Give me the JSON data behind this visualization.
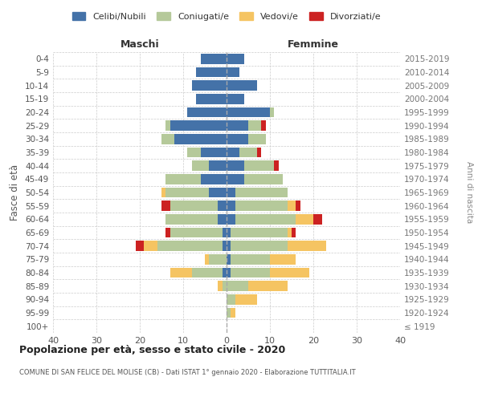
{
  "age_groups": [
    "100+",
    "95-99",
    "90-94",
    "85-89",
    "80-84",
    "75-79",
    "70-74",
    "65-69",
    "60-64",
    "55-59",
    "50-54",
    "45-49",
    "40-44",
    "35-39",
    "30-34",
    "25-29",
    "20-24",
    "15-19",
    "10-14",
    "5-9",
    "0-4"
  ],
  "birth_years": [
    "≤ 1919",
    "1920-1924",
    "1925-1929",
    "1930-1934",
    "1935-1939",
    "1940-1944",
    "1945-1949",
    "1950-1954",
    "1955-1959",
    "1960-1964",
    "1965-1969",
    "1970-1974",
    "1975-1979",
    "1980-1984",
    "1985-1989",
    "1990-1994",
    "1995-1999",
    "2000-2004",
    "2005-2009",
    "2010-2014",
    "2015-2019"
  ],
  "colors": {
    "celibe": "#4472a8",
    "coniugato": "#b5c99a",
    "vedovo": "#f5c462",
    "divorziato": "#cc2222"
  },
  "maschi": {
    "celibe": [
      0,
      0,
      0,
      0,
      1,
      0,
      1,
      1,
      2,
      2,
      4,
      6,
      4,
      6,
      12,
      13,
      9,
      7,
      8,
      7,
      6
    ],
    "coniugato": [
      0,
      0,
      0,
      1,
      7,
      4,
      15,
      12,
      12,
      11,
      10,
      8,
      4,
      3,
      3,
      1,
      0,
      0,
      0,
      0,
      0
    ],
    "vedovo": [
      0,
      0,
      0,
      1,
      5,
      1,
      3,
      0,
      0,
      0,
      1,
      0,
      0,
      0,
      0,
      0,
      0,
      0,
      0,
      0,
      0
    ],
    "divorziato": [
      0,
      0,
      0,
      0,
      0,
      0,
      2,
      1,
      0,
      2,
      0,
      0,
      0,
      0,
      0,
      0,
      0,
      0,
      0,
      0,
      0
    ]
  },
  "femmine": {
    "celibe": [
      0,
      0,
      0,
      0,
      1,
      1,
      1,
      1,
      2,
      2,
      2,
      4,
      4,
      3,
      5,
      5,
      10,
      4,
      7,
      3,
      4
    ],
    "coniugato": [
      0,
      1,
      2,
      5,
      9,
      9,
      13,
      13,
      14,
      12,
      12,
      9,
      7,
      4,
      4,
      3,
      1,
      0,
      0,
      0,
      0
    ],
    "vedovo": [
      0,
      1,
      5,
      9,
      9,
      6,
      9,
      1,
      4,
      2,
      0,
      0,
      0,
      0,
      0,
      0,
      0,
      0,
      0,
      0,
      0
    ],
    "divorziato": [
      0,
      0,
      0,
      0,
      0,
      0,
      0,
      1,
      2,
      1,
      0,
      0,
      1,
      1,
      0,
      1,
      0,
      0,
      0,
      0,
      0
    ]
  },
  "xlim": 40,
  "title": "Popolazione per età, sesso e stato civile - 2020",
  "subtitle": "COMUNE DI SAN FELICE DEL MOLISE (CB) - Dati ISTAT 1° gennaio 2020 - Elaborazione TUTTITALIA.IT",
  "ylabel_left": "Fasce di età",
  "ylabel_right": "Anni di nascita",
  "xlabel_maschi": "Maschi",
  "xlabel_femmine": "Femmine",
  "legend_labels": [
    "Celibi/Nubili",
    "Coniugati/e",
    "Vedovi/e",
    "Divorziati/e"
  ],
  "bg_color": "#ffffff",
  "grid_color": "#cccccc"
}
